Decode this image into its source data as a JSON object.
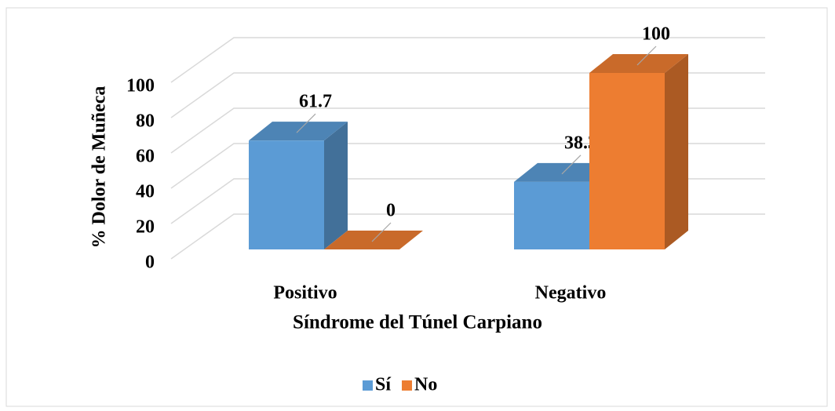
{
  "chart_data": {
    "type": "bar3d",
    "categories": [
      "Positivo",
      "Negativo"
    ],
    "series": [
      {
        "name": "Sí",
        "color": "#5b9bd5",
        "values": [
          61.7,
          38.3
        ]
      },
      {
        "name": "No",
        "color": "#ed7d31",
        "values": [
          0,
          100
        ]
      }
    ],
    "ylabel": "% Dolor de Muñeca",
    "xlabel": "Síndrome del Túnel Carpiano",
    "ylim": [
      0,
      100
    ],
    "yticks": [
      0,
      20,
      40,
      60,
      80,
      100
    ],
    "grid": true,
    "legend": "bottom"
  }
}
